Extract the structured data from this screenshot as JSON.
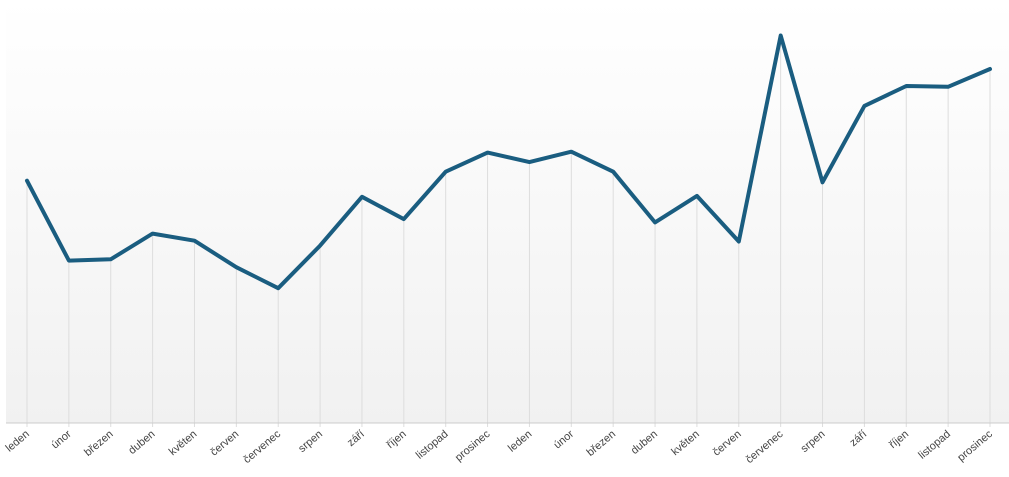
{
  "chart_data": {
    "type": "line",
    "title": "",
    "xlabel": "",
    "ylabel": "",
    "categories": [
      "leden",
      "únor",
      "březen",
      "duben",
      "květen",
      "červen",
      "červenec",
      "srpen",
      "září",
      "říjen",
      "listopad",
      "prosinec",
      "leden",
      "únor",
      "březen",
      "duben",
      "květen",
      "červen",
      "červenec",
      "srpen",
      "září",
      "říjen",
      "listopad",
      "prosinec"
    ],
    "series": [
      {
        "values": [
          58.8,
          29.5,
          30.0,
          39.4,
          36.8,
          27.1,
          19.4,
          35.0,
          52.9,
          44.7,
          62.1,
          69.1,
          65.6,
          69.4,
          62.1,
          43.5,
          53.2,
          36.5,
          112.0,
          58.2,
          86.2,
          93.5,
          93.2,
          99.7
        ],
        "color": "#1a5d80"
      }
    ],
    "ylim": [
      -30,
      125
    ],
    "grid": "vertical",
    "legend": "none",
    "colors": {
      "line": "#1a5d80",
      "grid": "#dddddd",
      "axis": "#cccccc",
      "label": "#444444",
      "bg_top": "#ffffff",
      "bg_bottom": "#f1f1f1"
    }
  }
}
